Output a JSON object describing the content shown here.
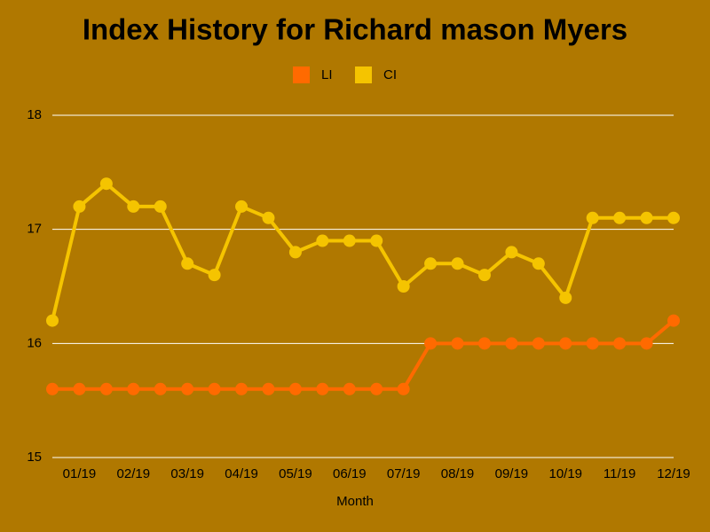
{
  "chart_data": {
    "type": "line",
    "title": "Index History for Richard mason Myers",
    "x_label": "Month",
    "categories": [
      null,
      "01/19",
      null,
      "02/19",
      null,
      "03/19",
      null,
      "04/19",
      null,
      "05/19",
      null,
      "06/19",
      null,
      "07/19",
      null,
      "08/19",
      null,
      "09/19",
      null,
      "10/19",
      null,
      "11/19",
      null,
      "12/19"
    ],
    "series": [
      {
        "name": "LI",
        "color": "#ff6a00",
        "values": [
          15.6,
          15.6,
          15.6,
          15.6,
          15.6,
          15.6,
          15.6,
          15.6,
          15.6,
          15.6,
          15.6,
          15.6,
          15.6,
          15.6,
          16,
          16,
          16,
          16,
          16,
          16,
          16,
          16,
          16,
          16.2
        ]
      },
      {
        "name": "CI",
        "color": "#f5c400",
        "values": [
          16.2,
          17.2,
          17.4,
          17.2,
          17.2,
          16.7,
          16.6,
          17.2,
          17.1,
          16.8,
          16.9,
          16.9,
          16.9,
          16.5,
          16.7,
          16.7,
          16.6,
          16.8,
          16.7,
          16.4,
          17.1,
          17.1,
          17.1,
          17.1
        ]
      }
    ],
    "ylim": [
      15,
      18
    ],
    "yticks": [
      15,
      16,
      17,
      18
    ],
    "grid": true,
    "legend": "top"
  }
}
